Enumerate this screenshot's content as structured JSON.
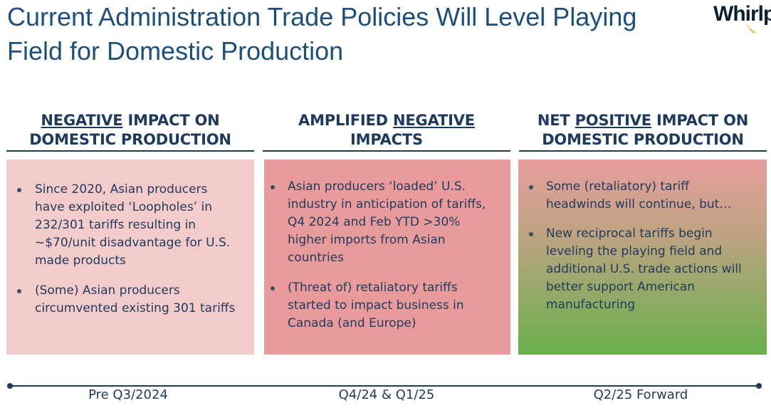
{
  "slide": {
    "title": "Current Administration Trade Policies Will Level Playing Field for Domestic Production",
    "logo_text": "Whirlpool"
  },
  "columns": [
    {
      "header_underlined": "NEGATIVE",
      "header_rest": " IMPACT ON DOMESTIC PRODUCTION",
      "bullets": [
        "Since 2020, Asian producers have exploited ‘Loopholes’ in 232/301 tariffs resulting in ~$70/unit disadvantage for U.S. made products",
        "(Some) Asian producers circumvented existing 301 tariffs"
      ],
      "background_color": "#f4cbcb"
    },
    {
      "header_prefix": "AMPLIFIED ",
      "header_underlined": "NEGATIVE",
      "header_rest": " IMPACTS",
      "bullets": [
        "Asian producers ‘loaded’ U.S. industry in anticipation of tariffs, Q4 2024 and Feb YTD >30% higher imports from Asian countries",
        "(Threat of) retaliatory tariffs started to impact business in Canada (and Europe)"
      ],
      "background_color": "#e99b9b"
    },
    {
      "header_prefix": "NET ",
      "header_underlined": "POSITIVE",
      "header_rest": " IMPACT ON DOMESTIC PRODUCTION",
      "bullets": [
        "Some (retaliatory) tariff headwinds will continue, but…",
        "New reciprocal tariffs begin leveling the playing field and additional U.S. trade actions will better support American manufacturing"
      ],
      "background_colors": [
        "#e79e9e",
        "#6aaf4c"
      ]
    }
  ],
  "timeline": {
    "labels": [
      "Pre Q3/2024",
      "Q4/24 & Q1/25",
      "Q2/25 Forward"
    ],
    "color": "#1f3a5c"
  },
  "colors": {
    "title": "#1f4e79",
    "text": "#1f3a5c",
    "logo_swoosh": "#e8b21e"
  }
}
